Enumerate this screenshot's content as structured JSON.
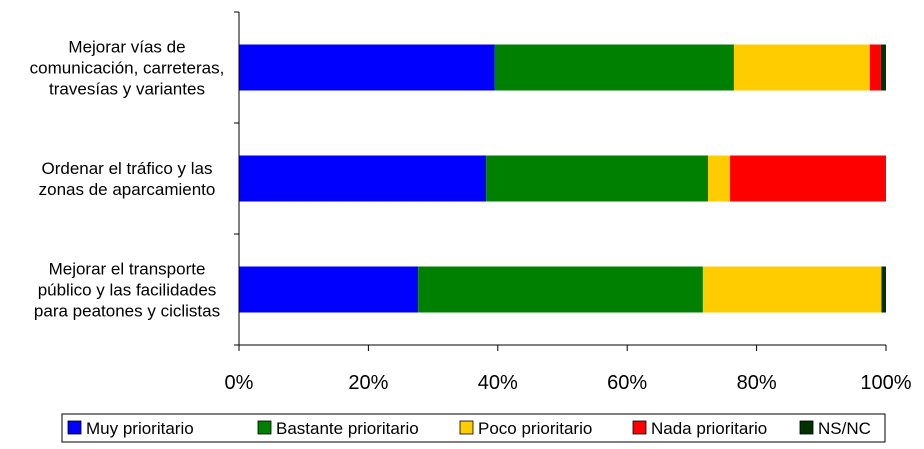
{
  "chart_data": {
    "type": "bar",
    "orientation": "horizontal",
    "stacked": true,
    "percent_stacked": true,
    "categories": [
      [
        "Mejorar vías de",
        "comunicación, carreteras,",
        "travesías y variantes"
      ],
      [
        "Ordenar el tráfico y las",
        "zonas de aparcamiento"
      ],
      [
        "Mejorar el transporte",
        "público y las facilidades",
        "para peatones y ciclistas"
      ]
    ],
    "series": [
      {
        "name": "Muy prioritario",
        "color": "#0000ff",
        "values": [
          39.5,
          38.2,
          27.7
        ]
      },
      {
        "name": "Bastante prioritario",
        "color": "#008000",
        "values": [
          37.0,
          34.3,
          44.0
        ]
      },
      {
        "name": "Poco prioritario",
        "color": "#ffcc00",
        "values": [
          21.0,
          3.4,
          27.6
        ]
      },
      {
        "name": "Nada prioritario",
        "color": "#ff0000",
        "values": [
          1.7,
          24.1,
          0.0
        ]
      },
      {
        "name": "NS/NC",
        "color": "#003300",
        "values": [
          0.8,
          0.0,
          0.7
        ]
      }
    ],
    "x_ticks": [
      "0%",
      "20%",
      "40%",
      "60%",
      "80%",
      "100%"
    ],
    "xlim": [
      0,
      100
    ],
    "grid": false,
    "legend_position": "bottom"
  }
}
